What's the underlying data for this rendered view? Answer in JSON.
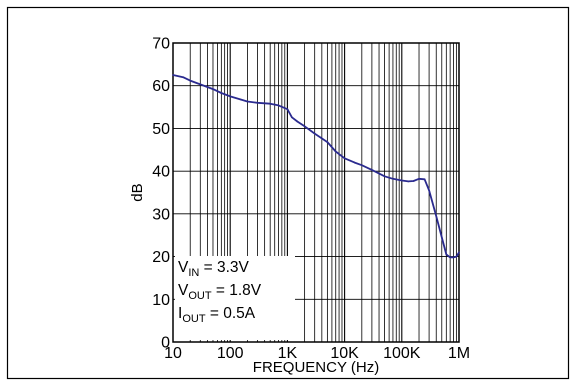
{
  "chart_data": {
    "type": "line",
    "x_scale": "log",
    "xlim": [
      10,
      1000000
    ],
    "ylim": [
      0,
      70
    ],
    "grid": true,
    "xlabel": "FREQUENCY (Hz)",
    "ylabel": "dB",
    "x_tick_labels": [
      "10",
      "100",
      "1K",
      "10K",
      "100K",
      "1M"
    ],
    "x_tick_values": [
      10,
      100,
      1000,
      10000,
      100000,
      1000000
    ],
    "y_tick_labels": [
      "0",
      "10",
      "20",
      "30",
      "40",
      "50",
      "60",
      "70"
    ],
    "y_tick_values": [
      0,
      10,
      20,
      30,
      40,
      50,
      60,
      70
    ],
    "annotations": [
      {
        "main": "V",
        "sub": "IN",
        "rest": " = 3.3V"
      },
      {
        "main": "V",
        "sub": "OUT",
        "rest": " = 1.8V"
      },
      {
        "main": "I",
        "sub": "OUT",
        "rest": " = 0.5A"
      }
    ],
    "series": [
      {
        "color": "#2b2b8f",
        "x": [
          10,
          15,
          20,
          30,
          50,
          70,
          100,
          150,
          200,
          300,
          500,
          700,
          1000,
          1200,
          1500,
          2000,
          3000,
          5000,
          7000,
          10000,
          15000,
          20000,
          30000,
          50000,
          70000,
          100000,
          130000,
          160000,
          200000,
          250000,
          300000,
          400000,
          500000,
          600000,
          700000,
          800000,
          900000,
          1000000
        ],
        "y": [
          62.5,
          62,
          61.2,
          60.3,
          59.2,
          58.3,
          57.5,
          56.8,
          56.3,
          56,
          55.8,
          55.4,
          54.5,
          52.6,
          51.6,
          50.5,
          48.8,
          46.8,
          44.6,
          43,
          42,
          41.4,
          40.3,
          38.8,
          38.2,
          37.8,
          37.6,
          37.7,
          38.2,
          38.1,
          35.5,
          29.5,
          24.5,
          20.5,
          19.8,
          19.8,
          20,
          21
        ]
      }
    ]
  }
}
